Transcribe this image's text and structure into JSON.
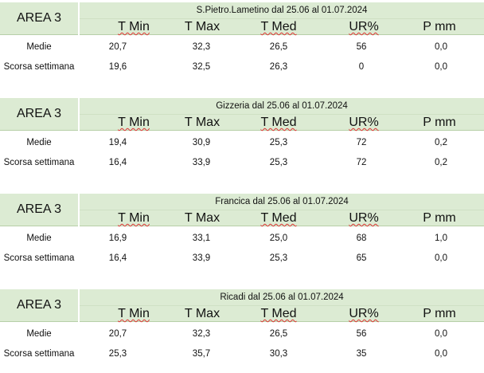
{
  "headers": [
    "T Min",
    "T Max",
    "T Med",
    "UR%",
    "P mm"
  ],
  "row_labels": [
    "Medie",
    "Scorsa settimana"
  ],
  "blocks": [
    {
      "area": "AREA 3",
      "title": "S.Pietro.Lametino dal 25.06 al 01.07.2024",
      "rows": [
        [
          "20,7",
          "32,3",
          "26,5",
          "56",
          "0,0"
        ],
        [
          "19,6",
          "32,5",
          "26,3",
          "0",
          "0,0"
        ]
      ]
    },
    {
      "area": "AREA 3",
      "title": "Gizzeria dal 25.06 al 01.07.2024",
      "rows": [
        [
          "19,4",
          "30,9",
          "25,3",
          "72",
          "0,2"
        ],
        [
          "16,4",
          "33,9",
          "25,3",
          "72",
          "0,2"
        ]
      ]
    },
    {
      "area": "AREA 3",
      "title": "Francica dal 25.06 al 01.07.2024",
      "rows": [
        [
          "16,9",
          "33,1",
          "25,0",
          "68",
          "1,0"
        ],
        [
          "16,4",
          "33,9",
          "25,3",
          "65",
          "0,0"
        ]
      ]
    },
    {
      "area": "AREA 3",
      "title": "Ricadi  dal 25.06 al 01.07.2024",
      "rows": [
        [
          "20,7",
          "32,3",
          "26,5",
          "56",
          "0,0"
        ],
        [
          "25,3",
          "35,7",
          "30,3",
          "35",
          "0,0"
        ]
      ]
    }
  ]
}
